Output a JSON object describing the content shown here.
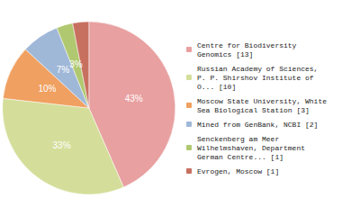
{
  "chart_data": {
    "type": "pie",
    "categories": [
      "Centre for Biodiversity\nGenomics [13]",
      "Russian Academy of Sciences,\nP. P. Shirshov Institute of\nO... [10]",
      "Moscow State University, White\nSea Biological Station [3]",
      "Mined from GenBank, NCBI [2]",
      "Senckenberg am Meer\nWilhelmshaven, Department\nGerman Centre... [1]",
      "Evrogen, Moscow [1]"
    ],
    "values": [
      43,
      33,
      10,
      7,
      3,
      3
    ],
    "value_labels": [
      "43%",
      "33%",
      "10%",
      "7%",
      "3%",
      "3%"
    ],
    "colors": [
      "#e8a0a0",
      "#d4de9a",
      "#f0a060",
      "#a0b8d8",
      "#b0c870",
      "#c87060"
    ],
    "data_labels": true,
    "legend": "right"
  }
}
